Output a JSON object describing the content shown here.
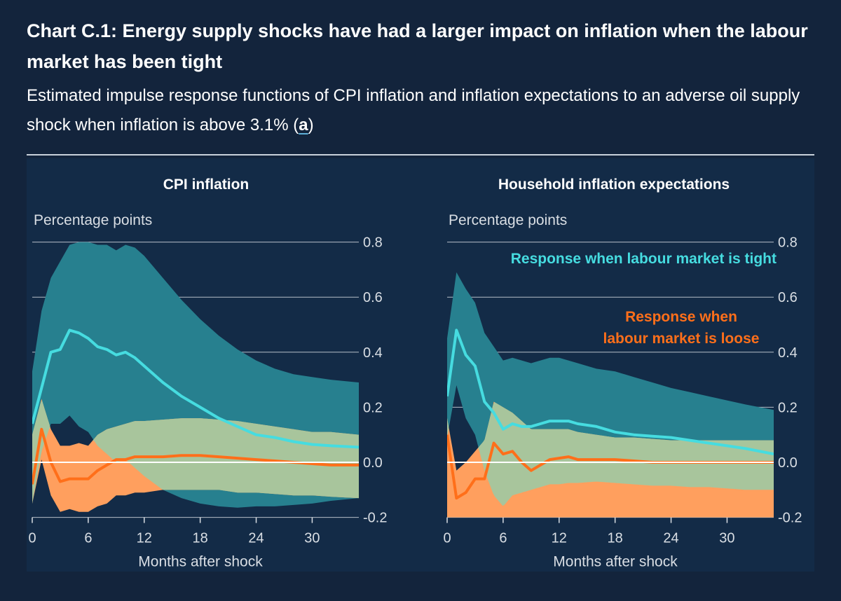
{
  "header": {
    "title": "Chart C.1: Energy supply shocks have had a larger impact on inflation when the labour market has been tight",
    "subtitle": "Estimated impulse response functions of CPI inflation and inflation expectations to an adverse oil supply shock when inflation is above 3.1%",
    "subtitle_open": "(",
    "note_link": "a",
    "subtitle_close": ")"
  },
  "colors": {
    "background": "#13243c",
    "panel_bg": "#132b47",
    "tight_band": "#27808f",
    "tight_line": "#46dce0",
    "loose_band": "#ff9f5e",
    "loose_line": "#ff6f1a",
    "overlap_band": "#a8c59c",
    "gridline": "#b6bec8",
    "zero_line": "#ffffff"
  },
  "chart_data": [
    {
      "type": "area",
      "title": "CPI inflation",
      "ylabel": "Percentage points",
      "xlabel": "Months after shock",
      "xlim": [
        0,
        35
      ],
      "ylim": [
        -0.2,
        0.8
      ],
      "xticks": [
        0,
        6,
        12,
        18,
        24,
        30
      ],
      "yticks": [
        -0.2,
        0.0,
        0.2,
        0.4,
        0.6,
        0.8
      ],
      "ytick_labels": [
        "-0.2",
        "0.0",
        "0.2",
        "0.4",
        "0.6",
        "0.8"
      ],
      "grid": true,
      "series": [
        {
          "key": "tight",
          "x": [
            0,
            1,
            2,
            3,
            4,
            5,
            6,
            7,
            8,
            9,
            10,
            11,
            12,
            14,
            16,
            18,
            20,
            22,
            24,
            26,
            28,
            30,
            32,
            35
          ],
          "values": [
            0.14,
            0.27,
            0.4,
            0.41,
            0.48,
            0.47,
            0.45,
            0.42,
            0.41,
            0.39,
            0.4,
            0.38,
            0.35,
            0.29,
            0.24,
            0.2,
            0.16,
            0.13,
            0.1,
            0.09,
            0.075,
            0.065,
            0.06,
            0.055
          ],
          "upper": [
            0.33,
            0.55,
            0.67,
            0.73,
            0.79,
            0.8,
            0.8,
            0.79,
            0.79,
            0.77,
            0.79,
            0.78,
            0.75,
            0.67,
            0.59,
            0.52,
            0.46,
            0.41,
            0.37,
            0.34,
            0.32,
            0.31,
            0.3,
            0.29
          ],
          "lower": [
            -0.15,
            0.04,
            0.14,
            0.14,
            0.17,
            0.13,
            0.11,
            0.06,
            0.03,
            0.0,
            0.01,
            -0.02,
            -0.05,
            -0.1,
            -0.13,
            -0.15,
            -0.16,
            -0.165,
            -0.16,
            -0.16,
            -0.155,
            -0.15,
            -0.14,
            -0.13
          ]
        },
        {
          "key": "loose",
          "x": [
            0,
            1,
            2,
            3,
            4,
            5,
            6,
            7,
            8,
            9,
            10,
            11,
            12,
            14,
            16,
            18,
            20,
            22,
            24,
            26,
            28,
            30,
            32,
            35
          ],
          "values": [
            -0.08,
            0.12,
            0.0,
            -0.07,
            -0.06,
            -0.06,
            -0.06,
            -0.03,
            -0.01,
            0.01,
            0.01,
            0.02,
            0.02,
            0.02,
            0.025,
            0.025,
            0.02,
            0.015,
            0.01,
            0.005,
            0.0,
            -0.005,
            -0.01,
            -0.01
          ],
          "upper": [
            0.1,
            0.23,
            0.12,
            0.06,
            0.06,
            0.07,
            0.06,
            0.1,
            0.12,
            0.13,
            0.14,
            0.15,
            0.15,
            0.155,
            0.16,
            0.16,
            0.155,
            0.15,
            0.14,
            0.13,
            0.12,
            0.11,
            0.11,
            0.1
          ],
          "lower": [
            -0.15,
            0.01,
            -0.12,
            -0.18,
            -0.17,
            -0.18,
            -0.18,
            -0.16,
            -0.15,
            -0.12,
            -0.12,
            -0.11,
            -0.11,
            -0.1,
            -0.1,
            -0.1,
            -0.1,
            -0.11,
            -0.11,
            -0.115,
            -0.12,
            -0.12,
            -0.125,
            -0.13
          ]
        }
      ]
    },
    {
      "type": "area",
      "title": "Household inflation expectations",
      "ylabel": "Percentage points",
      "xlabel": "Months after shock",
      "xlim": [
        0,
        35
      ],
      "ylim": [
        -0.2,
        0.8
      ],
      "xticks": [
        0,
        6,
        12,
        18,
        24,
        30
      ],
      "yticks": [
        -0.2,
        0.0,
        0.2,
        0.4,
        0.6,
        0.8
      ],
      "ytick_labels": [
        "-0.2",
        "0.0",
        "0.2",
        "0.4",
        "0.6",
        "0.8"
      ],
      "grid": true,
      "annotations": [
        {
          "key": "tight",
          "lines": [
            "Response when labour market is tight"
          ]
        },
        {
          "key": "loose",
          "lines": [
            "Response when",
            "labour market is loose"
          ]
        }
      ],
      "series": [
        {
          "key": "tight",
          "x": [
            0,
            1,
            2,
            3,
            4,
            5,
            6,
            7,
            8,
            9,
            10,
            11,
            12,
            13,
            14,
            16,
            18,
            20,
            22,
            24,
            26,
            28,
            30,
            32,
            35
          ],
          "values": [
            0.24,
            0.48,
            0.39,
            0.35,
            0.22,
            0.18,
            0.12,
            0.14,
            0.13,
            0.13,
            0.14,
            0.15,
            0.15,
            0.15,
            0.14,
            0.13,
            0.11,
            0.1,
            0.095,
            0.09,
            0.08,
            0.07,
            0.06,
            0.05,
            0.03
          ],
          "upper": [
            0.45,
            0.69,
            0.63,
            0.58,
            0.47,
            0.42,
            0.37,
            0.38,
            0.37,
            0.36,
            0.37,
            0.38,
            0.38,
            0.37,
            0.36,
            0.34,
            0.33,
            0.31,
            0.29,
            0.27,
            0.255,
            0.24,
            0.225,
            0.21,
            0.19
          ],
          "lower": [
            0.09,
            0.28,
            0.16,
            0.1,
            -0.03,
            -0.12,
            -0.16,
            -0.12,
            -0.11,
            -0.1,
            -0.09,
            -0.08,
            -0.08,
            -0.075,
            -0.075,
            -0.07,
            -0.075,
            -0.08,
            -0.085,
            -0.085,
            -0.09,
            -0.09,
            -0.095,
            -0.1,
            -0.1
          ]
        },
        {
          "key": "loose",
          "x": [
            0,
            1,
            2,
            3,
            4,
            5,
            6,
            7,
            8,
            9,
            10,
            11,
            12,
            13,
            14,
            16,
            18,
            20,
            22,
            24,
            26,
            28,
            30,
            32,
            35
          ],
          "values": [
            0.1,
            -0.13,
            -0.11,
            -0.06,
            -0.06,
            0.07,
            0.03,
            0.04,
            0.0,
            -0.03,
            -0.01,
            0.01,
            0.015,
            0.02,
            0.01,
            0.01,
            0.01,
            0.005,
            0.0,
            0.0,
            0.0,
            0.0,
            0.0,
            0.0,
            0.0
          ],
          "upper": [
            0.16,
            -0.03,
            0.0,
            0.04,
            0.08,
            0.22,
            0.2,
            0.18,
            0.15,
            0.12,
            0.12,
            0.12,
            0.12,
            0.12,
            0.11,
            0.1,
            0.09,
            0.09,
            0.085,
            0.08,
            0.08,
            0.08,
            0.08,
            0.08,
            0.08
          ]
        }
      ]
    }
  ]
}
